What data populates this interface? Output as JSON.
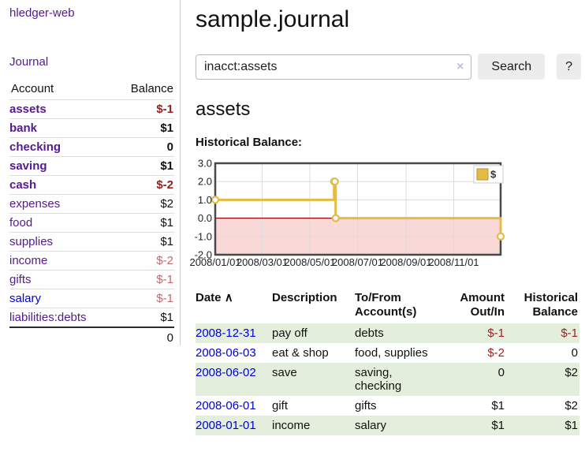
{
  "app": {
    "brand": "hledger-web",
    "nav_journal": "Journal"
  },
  "colors": {
    "link_purple": "#551a8b",
    "link_blue": "#0000dd",
    "negative_strong": "#941f1f",
    "negative_soft": "#c16a6e",
    "row_stripe_green": "#e3efdc",
    "chart_gold": "#e4bc45",
    "chart_negative_region": "#f9d8d8",
    "chart_zero_line": "#990000"
  },
  "sidebar": {
    "header": {
      "account": "Account",
      "balance": "Balance"
    },
    "accounts": [
      {
        "name": "assets",
        "level": 0,
        "balance": "$-1",
        "bold": true,
        "neg": "strong",
        "link": "purple"
      },
      {
        "name": "bank",
        "level": 1,
        "balance": "$1",
        "bold": true,
        "neg": "",
        "link": "purple"
      },
      {
        "name": "checking",
        "level": 2,
        "balance": "0",
        "bold": true,
        "neg": "",
        "link": "purple"
      },
      {
        "name": "saving",
        "level": 2,
        "balance": "$1",
        "bold": true,
        "neg": "",
        "link": "purple"
      },
      {
        "name": "cash",
        "level": 1,
        "balance": "$-2",
        "bold": true,
        "neg": "strong",
        "link": "purple"
      },
      {
        "name": "expenses",
        "level": 0,
        "balance": "$2",
        "bold": false,
        "neg": "",
        "link": "purple"
      },
      {
        "name": "food",
        "level": 1,
        "balance": "$1",
        "bold": false,
        "neg": "",
        "link": "purple"
      },
      {
        "name": "supplies",
        "level": 1,
        "balance": "$1",
        "bold": false,
        "neg": "",
        "link": "purple"
      },
      {
        "name": "income",
        "level": 0,
        "balance": "$-2",
        "bold": false,
        "neg": "soft",
        "link": "purple"
      },
      {
        "name": "gifts",
        "level": 1,
        "balance": "$-1",
        "bold": false,
        "neg": "soft",
        "link": "purple"
      },
      {
        "name": "salary",
        "level": 1,
        "balance": "$-1",
        "bold": false,
        "neg": "soft",
        "link": "blue"
      },
      {
        "name": "liabilities:debts",
        "level": 0,
        "balance": "$1",
        "bold": false,
        "neg": "",
        "link": "purple"
      }
    ],
    "total": "0"
  },
  "header": {
    "title": "sample.journal"
  },
  "search": {
    "value": "inacct:assets",
    "clear_icon": "×",
    "button_label": "Search",
    "help_label": "?"
  },
  "account_page": {
    "title": "assets",
    "chart_heading": "Historical Balance:"
  },
  "chart_data": {
    "type": "line",
    "step": true,
    "title": "Historical Balance",
    "x_domain": [
      "2008-01-01",
      "2008-12-31"
    ],
    "ylim": [
      -2,
      3
    ],
    "y_ticks": [
      "3.0",
      "2.0",
      "1.0",
      "0.0",
      "-1.0",
      "-2.0"
    ],
    "y_tick_values": [
      3,
      2,
      1,
      0,
      -1,
      -2
    ],
    "x_ticks": [
      "2008/01/01",
      "2008/03/01",
      "2008/05/01",
      "2008/07/01",
      "2008/09/01",
      "2008/11/01"
    ],
    "grid": true,
    "legend_position": "top-right",
    "series": [
      {
        "name": "$",
        "color": "#e4bc45",
        "points": [
          [
            "2008-01-01",
            1
          ],
          [
            "2008-06-01",
            2
          ],
          [
            "2008-06-02",
            2
          ],
          [
            "2008-06-03",
            0
          ],
          [
            "2008-12-31",
            -1
          ]
        ]
      }
    ]
  },
  "register": {
    "headers": {
      "date": "Date",
      "sort_icon": "∧",
      "description": "Description",
      "tofrom": "To/From\nAccount(s)",
      "amount": "Amount\nOut/In",
      "balance": "Historical\nBalance"
    },
    "rows": [
      {
        "date": "2008-12-31",
        "description": "pay off",
        "accounts": "debts",
        "amount": "$-1",
        "balance": "$-1"
      },
      {
        "date": "2008-06-03",
        "description": "eat & shop",
        "accounts": "food, supplies",
        "amount": "$-2",
        "balance": "0"
      },
      {
        "date": "2008-06-02",
        "description": "save",
        "accounts": "saving,\nchecking",
        "amount": "0",
        "balance": "$2"
      },
      {
        "date": "2008-06-01",
        "description": "gift",
        "accounts": "gifts",
        "amount": "$1",
        "balance": "$2"
      },
      {
        "date": "2008-01-01",
        "description": "income",
        "accounts": "salary",
        "amount": "$1",
        "balance": "$1"
      }
    ]
  }
}
